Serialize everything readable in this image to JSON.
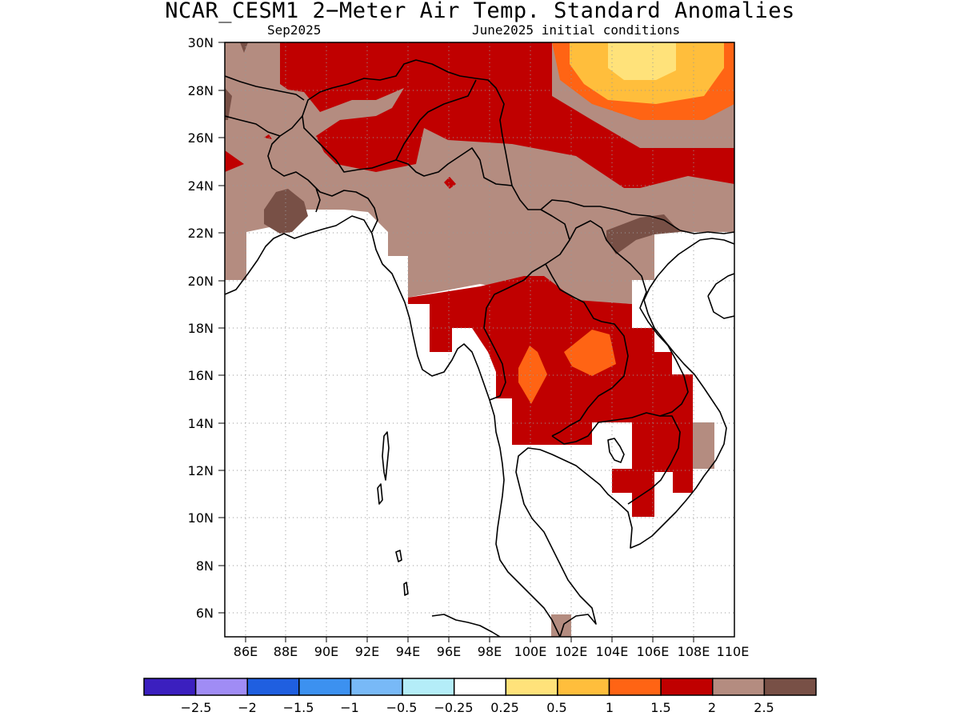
{
  "header": {
    "title": "NCAR_CESM1 2−Meter Air Temp. Standard Anomalies",
    "valid_month": "Sep2025",
    "initial_conditions": "June2025 initial conditions"
  },
  "axes": {
    "lat_labels": [
      "30N",
      "28N",
      "26N",
      "24N",
      "22N",
      "20N",
      "18N",
      "16N",
      "14N",
      "12N",
      "10N",
      "8N",
      "6N"
    ],
    "lon_labels": [
      "86E",
      "88E",
      "90E",
      "92E",
      "94E",
      "96E",
      "98E",
      "100E",
      "102E",
      "104E",
      "106E",
      "108E",
      "110E"
    ],
    "lat_range": [
      5,
      30
    ],
    "lon_range": [
      85,
      110
    ]
  },
  "legend": {
    "labels": [
      "−2.5",
      "−2",
      "−1.5",
      "−1",
      "−0.5",
      "−0.25",
      "0.25",
      "0.5",
      "1",
      "1.5",
      "2",
      "2.5"
    ],
    "colors": [
      "#3b1fbf",
      "#a08cf5",
      "#1f5fe0",
      "#3c91f0",
      "#78b9f7",
      "#b4edf8",
      "#ffffff",
      "#ffe27a",
      "#ffbe3c",
      "#ff6414",
      "#c00000",
      "#b48c80",
      "#785046"
    ]
  },
  "map": {
    "region": "Southeast Asia (Myanmar, Thailand, Laos, Cambodia, Vietnam, Bangladesh, NE India, S China)",
    "colors": {
      "brown": "#b48c80",
      "dark_brown": "#785046",
      "red": "#c00000",
      "orange": "#ff6414",
      "light_orange": "#ffbe3c",
      "yellow": "#ffe27a"
    }
  }
}
